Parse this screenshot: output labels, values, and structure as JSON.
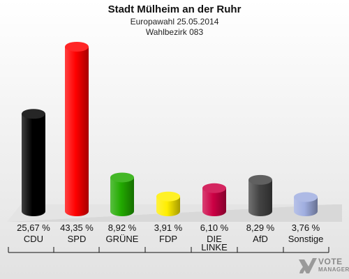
{
  "header": {
    "title": "Stadt Mülheim an der Ruhr",
    "subtitle": "Europawahl 25.05.2014",
    "subtitle2": "Wahlbezirk 083"
  },
  "logo": {
    "line1": "VOTE",
    "line2": "MANAGER"
  },
  "chart_data": {
    "type": "bar",
    "categories": [
      "CDU",
      "SPD",
      "GRÜNE",
      "FDP",
      "DIE LINKE",
      "AfD",
      "Sonstige"
    ],
    "value_labels": [
      "25,67 %",
      "43,35 %",
      "8,92 %",
      "3,91 %",
      "6,10 %",
      "8,29 %",
      "3,76 %"
    ],
    "values": [
      25.67,
      43.35,
      8.92,
      3.91,
      6.1,
      8.29,
      3.76
    ],
    "colors": [
      "#000000",
      "#ff0000",
      "#22aa00",
      "#ffee00",
      "#cc0044",
      "#444444",
      "#a0aee0"
    ],
    "title": "Stadt Mülheim an der Ruhr",
    "xlabel": "",
    "ylabel": "",
    "unit": "%",
    "grid": false,
    "legend": "none"
  }
}
